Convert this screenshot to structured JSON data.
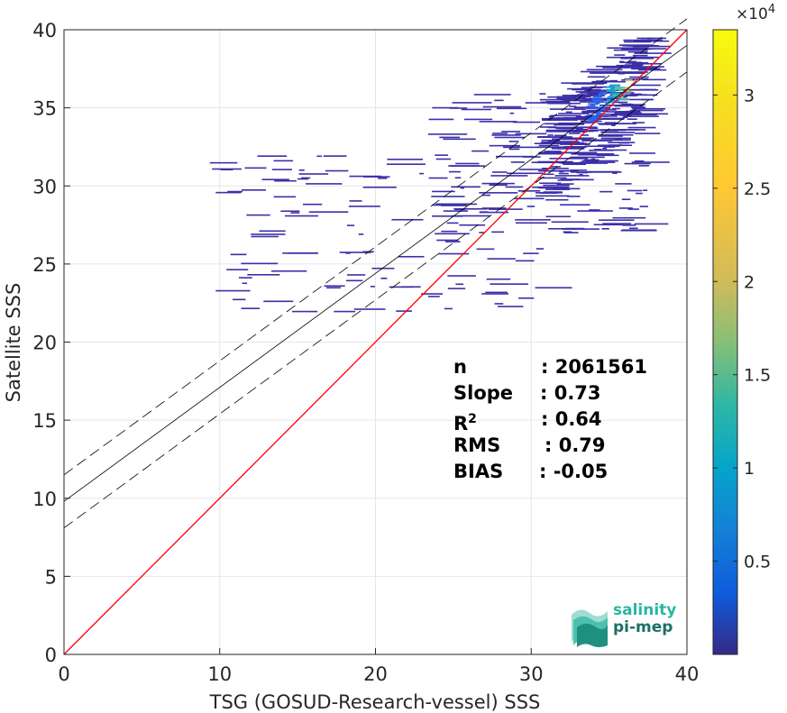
{
  "chart_data": {
    "type": "heatmap",
    "title": "",
    "xlabel": "TSG (GOSUD-Research-vessel) SSS",
    "ylabel": "Satellite SSS",
    "xlim": [
      0,
      40
    ],
    "ylim": [
      0,
      40
    ],
    "xticks": [
      "0",
      "10",
      "20",
      "30",
      "40"
    ],
    "yticks": [
      "0",
      "5",
      "10",
      "15",
      "20",
      "25",
      "30",
      "35",
      "40"
    ],
    "grid": true,
    "colormap": "parula",
    "colorbar": {
      "multiplier": "×10",
      "exponent": "4",
      "ticks": [
        "0.5",
        "1",
        "1.5",
        "2",
        "2.5",
        "3"
      ],
      "tick_values": [
        5000,
        10000,
        15000,
        20000,
        25000,
        30000
      ],
      "range": [
        0,
        33500
      ]
    },
    "reference_line": {
      "name": "1:1",
      "color": "#ff0000",
      "slope": 1,
      "intercept": 0
    },
    "fit_line": {
      "slope": 0.73,
      "intercept": 9.8,
      "color": "#000000"
    },
    "fit_bounds": {
      "offset": 1.7,
      "style": "dashed",
      "color": "#000000"
    },
    "density_summary": {
      "main_cluster": {
        "x": 35.5,
        "y": 35.3
      },
      "x_range": [
        9.8,
        38
      ],
      "y_range": [
        22,
        39.5
      ]
    },
    "stats": [
      {
        "label": "n",
        "value": ": 2061561"
      },
      {
        "label": "Slope",
        "value": ": 0.73"
      },
      {
        "label": "R",
        "sup": "2",
        "value": ": 0.64"
      },
      {
        "label": "RMS",
        "value": ": 0.79"
      },
      {
        "label": "BIAS",
        "value": ": -0.05"
      }
    ]
  },
  "logo": {
    "line1": "salinity",
    "line2": "pi-mep"
  }
}
